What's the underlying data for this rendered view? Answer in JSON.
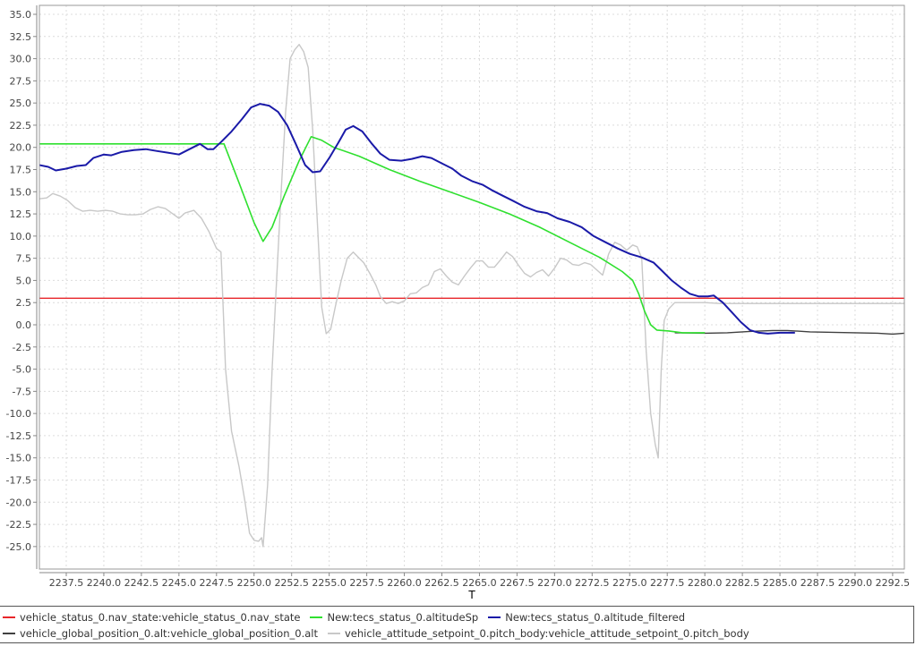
{
  "chart_data": {
    "type": "line",
    "title": "",
    "xlabel": "T",
    "ylabel": "",
    "xlim": [
      2235.7,
      2293.3
    ],
    "ylim": [
      -27.4,
      35.6
    ],
    "grid": true,
    "legend_position": "bottom",
    "x_ticks": [
      "2237.5",
      "2240.0",
      "2242.5",
      "2245.0",
      "2247.5",
      "2250.0",
      "2252.5",
      "2255.0",
      "2257.5",
      "2260.0",
      "2262.5",
      "2265.0",
      "2267.5",
      "2270.0",
      "2272.5",
      "2275.0",
      "2277.5",
      "2280.0",
      "2282.5",
      "2285.0",
      "2287.5",
      "2290.0",
      "2292.5"
    ],
    "y_ticks": [
      "35.0",
      "32.5",
      "30.0",
      "27.5",
      "25.0",
      "22.5",
      "20.0",
      "17.5",
      "15.0",
      "12.5",
      "10.0",
      "7.5",
      "5.0",
      "2.5",
      "0.0",
      "-2.5",
      "-5.0",
      "-7.5",
      "-10.0",
      "-12.5",
      "-15.0",
      "-17.5",
      "-20.0",
      "-22.5",
      "-25.0"
    ],
    "series": [
      {
        "name": "vehicle_status_0.nav_state:vehicle_status_0.nav_state",
        "color": "#e8262a",
        "width": 1.4,
        "points": [
          [
            2235.7,
            3.0
          ],
          [
            2293.3,
            3.0
          ]
        ]
      },
      {
        "name": "vehicle_attitude_setpoint_0.pitch_body:vehicle_attitude_setpoint_0.pitch_body",
        "color": "#c8c8c8",
        "width": 1.4,
        "points": [
          [
            2235.7,
            14.2
          ],
          [
            2236.2,
            14.3
          ],
          [
            2236.6,
            14.8
          ],
          [
            2237.1,
            14.5
          ],
          [
            2237.6,
            14.0
          ],
          [
            2238.1,
            13.2
          ],
          [
            2238.6,
            12.8
          ],
          [
            2239.1,
            12.9
          ],
          [
            2239.6,
            12.8
          ],
          [
            2240.1,
            12.9
          ],
          [
            2240.6,
            12.8
          ],
          [
            2241.1,
            12.5
          ],
          [
            2241.6,
            12.4
          ],
          [
            2242.1,
            12.4
          ],
          [
            2242.6,
            12.5
          ],
          [
            2243.1,
            13.0
          ],
          [
            2243.6,
            13.3
          ],
          [
            2244.1,
            13.1
          ],
          [
            2244.6,
            12.5
          ],
          [
            2245.0,
            12.0
          ],
          [
            2245.4,
            12.6
          ],
          [
            2246.0,
            12.9
          ],
          [
            2246.5,
            12.0
          ],
          [
            2247.0,
            10.5
          ],
          [
            2247.5,
            8.6
          ],
          [
            2247.8,
            8.2
          ],
          [
            2248.1,
            -5.0
          ],
          [
            2248.5,
            -12.0
          ],
          [
            2249.0,
            -16.0
          ],
          [
            2249.4,
            -20.0
          ],
          [
            2249.7,
            -23.5
          ],
          [
            2250.0,
            -24.3
          ],
          [
            2250.3,
            -24.4
          ],
          [
            2250.5,
            -24.0
          ],
          [
            2250.6,
            -25.0
          ],
          [
            2250.9,
            -18.0
          ],
          [
            2251.2,
            -5.0
          ],
          [
            2251.5,
            5.0
          ],
          [
            2251.8,
            15.0
          ],
          [
            2252.1,
            24.0
          ],
          [
            2252.4,
            30.0
          ],
          [
            2252.7,
            31.0
          ],
          [
            2253.0,
            31.6
          ],
          [
            2253.3,
            30.8
          ],
          [
            2253.6,
            29.0
          ],
          [
            2253.9,
            22.0
          ],
          [
            2254.2,
            12.0
          ],
          [
            2254.5,
            2.0
          ],
          [
            2254.8,
            -1.0
          ],
          [
            2255.1,
            -0.5
          ],
          [
            2255.4,
            2.0
          ],
          [
            2255.8,
            5.0
          ],
          [
            2256.2,
            7.5
          ],
          [
            2256.6,
            8.2
          ],
          [
            2257.0,
            7.5
          ],
          [
            2257.3,
            7.0
          ],
          [
            2257.7,
            5.8
          ],
          [
            2258.1,
            4.5
          ],
          [
            2258.4,
            3.2
          ],
          [
            2258.8,
            2.4
          ],
          [
            2259.2,
            2.6
          ],
          [
            2259.6,
            2.4
          ],
          [
            2260.0,
            2.7
          ],
          [
            2260.4,
            3.5
          ],
          [
            2260.8,
            3.6
          ],
          [
            2261.2,
            4.2
          ],
          [
            2261.6,
            4.5
          ],
          [
            2262.0,
            6.0
          ],
          [
            2262.4,
            6.3
          ],
          [
            2262.8,
            5.5
          ],
          [
            2263.2,
            4.8
          ],
          [
            2263.6,
            4.5
          ],
          [
            2264.0,
            5.5
          ],
          [
            2264.4,
            6.4
          ],
          [
            2264.8,
            7.2
          ],
          [
            2265.2,
            7.2
          ],
          [
            2265.6,
            6.5
          ],
          [
            2266.0,
            6.5
          ],
          [
            2266.4,
            7.3
          ],
          [
            2266.8,
            8.2
          ],
          [
            2267.2,
            7.7
          ],
          [
            2267.6,
            6.7
          ],
          [
            2268.0,
            5.8
          ],
          [
            2268.4,
            5.4
          ],
          [
            2268.8,
            5.9
          ],
          [
            2269.2,
            6.2
          ],
          [
            2269.6,
            5.5
          ],
          [
            2270.0,
            6.4
          ],
          [
            2270.4,
            7.5
          ],
          [
            2270.8,
            7.3
          ],
          [
            2271.2,
            6.8
          ],
          [
            2271.6,
            6.7
          ],
          [
            2272.0,
            7.0
          ],
          [
            2272.4,
            6.8
          ],
          [
            2272.8,
            6.2
          ],
          [
            2273.2,
            5.6
          ],
          [
            2273.6,
            8.0
          ],
          [
            2274.0,
            9.3
          ],
          [
            2274.4,
            9.0
          ],
          [
            2274.8,
            8.4
          ],
          [
            2275.2,
            9.0
          ],
          [
            2275.5,
            8.8
          ],
          [
            2275.8,
            7.5
          ],
          [
            2276.1,
            -3.0
          ],
          [
            2276.4,
            -10.0
          ],
          [
            2276.7,
            -13.5
          ],
          [
            2276.9,
            -15.0
          ],
          [
            2277.1,
            -5.0
          ],
          [
            2277.3,
            0.5
          ],
          [
            2277.6,
            1.8
          ],
          [
            2278.0,
            2.5
          ],
          [
            2280.0,
            2.5
          ],
          [
            2281.0,
            2.4
          ],
          [
            2285.0,
            2.4
          ],
          [
            2293.3,
            2.4
          ]
        ]
      },
      {
        "name": "vehicle_global_position_0.alt:vehicle_global_position_0.alt",
        "color": "#404040",
        "width": 1.4,
        "points": [
          [
            2278.0,
            -0.9
          ],
          [
            2280.0,
            -0.95
          ],
          [
            2281.5,
            -0.9
          ],
          [
            2283.0,
            -0.75
          ],
          [
            2284.5,
            -0.65
          ],
          [
            2285.5,
            -0.65
          ],
          [
            2287.0,
            -0.8
          ],
          [
            2288.5,
            -0.85
          ],
          [
            2290.0,
            -0.9
          ],
          [
            2291.5,
            -0.95
          ],
          [
            2292.5,
            -1.05
          ],
          [
            2293.3,
            -0.95
          ]
        ]
      },
      {
        "name": "New:tecs_status_0.altitudeSp",
        "color": "#2fe02f",
        "width": 1.6,
        "points": [
          [
            2235.7,
            20.4
          ],
          [
            2248.0,
            20.4
          ],
          [
            2249.0,
            16.0
          ],
          [
            2250.0,
            11.5
          ],
          [
            2250.6,
            9.4
          ],
          [
            2251.2,
            11.0
          ],
          [
            2252.0,
            14.5
          ],
          [
            2253.0,
            18.5
          ],
          [
            2253.8,
            21.2
          ],
          [
            2254.5,
            20.8
          ],
          [
            2255.3,
            20.0
          ],
          [
            2257.0,
            19.0
          ],
          [
            2259.0,
            17.5
          ],
          [
            2261.0,
            16.2
          ],
          [
            2263.0,
            15.0
          ],
          [
            2265.0,
            13.8
          ],
          [
            2267.0,
            12.5
          ],
          [
            2269.0,
            11.0
          ],
          [
            2271.0,
            9.3
          ],
          [
            2273.0,
            7.6
          ],
          [
            2274.5,
            6.0
          ],
          [
            2275.2,
            5.0
          ],
          [
            2275.6,
            3.5
          ],
          [
            2276.0,
            1.5
          ],
          [
            2276.4,
            0.0
          ],
          [
            2276.8,
            -0.6
          ],
          [
            2277.6,
            -0.7
          ],
          [
            2278.5,
            -0.9
          ],
          [
            2280.0,
            -0.9
          ]
        ]
      },
      {
        "name": "New:tecs_status_0.altitude_filtered",
        "color": "#1a1aa8",
        "width": 2.0,
        "points": [
          [
            2235.7,
            18.0
          ],
          [
            2236.3,
            17.8
          ],
          [
            2236.8,
            17.4
          ],
          [
            2237.5,
            17.6
          ],
          [
            2238.2,
            17.9
          ],
          [
            2238.8,
            18.0
          ],
          [
            2239.3,
            18.8
          ],
          [
            2240.0,
            19.2
          ],
          [
            2240.5,
            19.1
          ],
          [
            2241.2,
            19.5
          ],
          [
            2242.0,
            19.7
          ],
          [
            2242.8,
            19.8
          ],
          [
            2243.5,
            19.6
          ],
          [
            2244.3,
            19.4
          ],
          [
            2245.0,
            19.2
          ],
          [
            2245.7,
            19.8
          ],
          [
            2246.4,
            20.4
          ],
          [
            2246.9,
            19.8
          ],
          [
            2247.3,
            19.8
          ],
          [
            2247.8,
            20.6
          ],
          [
            2248.5,
            21.8
          ],
          [
            2249.2,
            23.2
          ],
          [
            2249.8,
            24.5
          ],
          [
            2250.4,
            24.9
          ],
          [
            2251.0,
            24.7
          ],
          [
            2251.6,
            24.0
          ],
          [
            2252.2,
            22.5
          ],
          [
            2252.8,
            20.3
          ],
          [
            2253.4,
            18.0
          ],
          [
            2253.9,
            17.2
          ],
          [
            2254.4,
            17.3
          ],
          [
            2255.0,
            18.8
          ],
          [
            2255.6,
            20.5
          ],
          [
            2256.1,
            22.0
          ],
          [
            2256.6,
            22.4
          ],
          [
            2257.2,
            21.8
          ],
          [
            2257.8,
            20.5
          ],
          [
            2258.4,
            19.3
          ],
          [
            2259.0,
            18.6
          ],
          [
            2259.8,
            18.5
          ],
          [
            2260.5,
            18.7
          ],
          [
            2261.2,
            19.0
          ],
          [
            2261.8,
            18.8
          ],
          [
            2262.5,
            18.2
          ],
          [
            2263.2,
            17.6
          ],
          [
            2263.8,
            16.8
          ],
          [
            2264.5,
            16.2
          ],
          [
            2265.2,
            15.8
          ],
          [
            2265.8,
            15.2
          ],
          [
            2266.5,
            14.6
          ],
          [
            2267.2,
            14.0
          ],
          [
            2268.0,
            13.3
          ],
          [
            2268.8,
            12.8
          ],
          [
            2269.5,
            12.6
          ],
          [
            2270.2,
            12.0
          ],
          [
            2271.0,
            11.6
          ],
          [
            2271.8,
            11.0
          ],
          [
            2272.6,
            10.0
          ],
          [
            2273.4,
            9.3
          ],
          [
            2274.2,
            8.6
          ],
          [
            2275.0,
            8.0
          ],
          [
            2275.8,
            7.6
          ],
          [
            2276.6,
            7.0
          ],
          [
            2277.2,
            6.0
          ],
          [
            2277.8,
            5.0
          ],
          [
            2278.4,
            4.2
          ],
          [
            2279.0,
            3.5
          ],
          [
            2279.6,
            3.2
          ],
          [
            2280.2,
            3.2
          ],
          [
            2280.6,
            3.3
          ],
          [
            2281.2,
            2.5
          ],
          [
            2281.8,
            1.4
          ],
          [
            2282.4,
            0.3
          ],
          [
            2283.0,
            -0.6
          ],
          [
            2283.6,
            -0.9
          ],
          [
            2284.2,
            -1.0
          ],
          [
            2285.0,
            -0.9
          ],
          [
            2286.0,
            -0.9
          ]
        ]
      }
    ]
  },
  "legend": {
    "row1": [
      {
        "label": "vehicle_status_0.nav_state:vehicle_status_0.nav_state",
        "color": "#e8262a"
      },
      {
        "label": "New:tecs_status_0.altitudeSp",
        "color": "#2fe02f"
      },
      {
        "label": "New:tecs_status_0.altitude_filtered",
        "color": "#1a1aa8"
      }
    ],
    "row2": [
      {
        "label": "vehicle_global_position_0.alt:vehicle_global_position_0.alt",
        "color": "#404040"
      },
      {
        "label": "vehicle_attitude_setpoint_0.pitch_body:vehicle_attitude_setpoint_0.pitch_body",
        "color": "#c8c8c8"
      }
    ]
  }
}
